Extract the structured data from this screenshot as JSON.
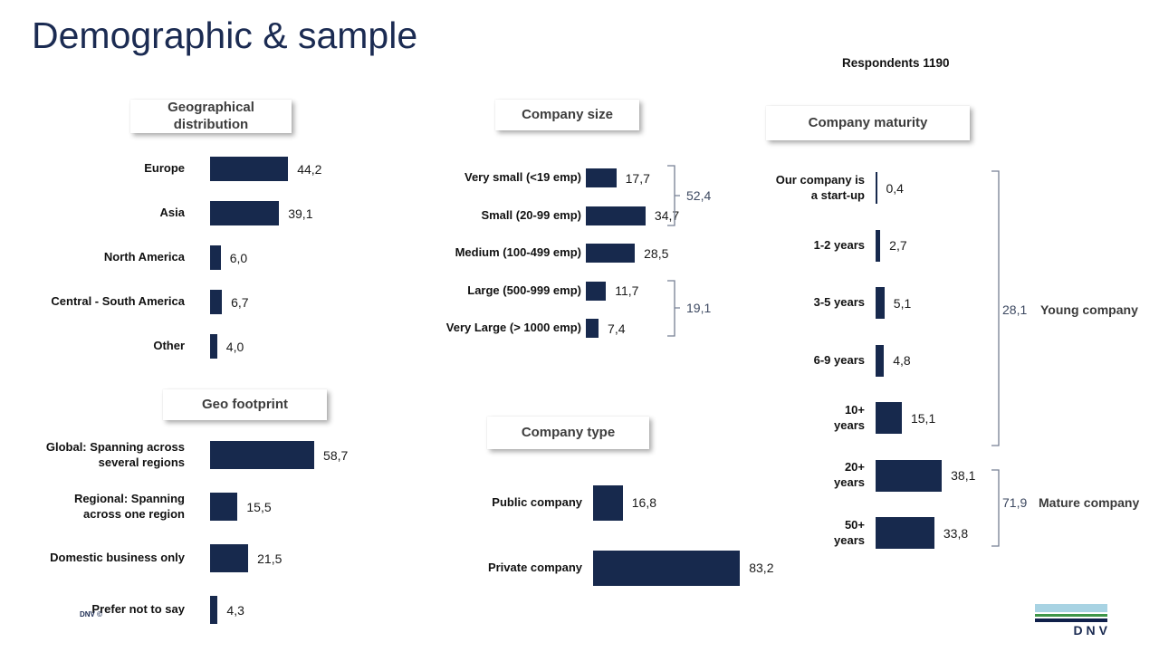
{
  "slide": {
    "title": "Demographic & sample",
    "respondents_label": "Respondents 1190",
    "footer_left": "DNV ©",
    "logo_text": "DNV"
  },
  "colors": {
    "bar": "#17294d",
    "title_text": "#1b2b52",
    "bracket": "#767f93",
    "bracket_value": "#3d4961",
    "logo_light_blue": "#a8d3e3",
    "logo_green": "#3f9649",
    "logo_navy": "#10204a"
  },
  "chart_data": [
    {
      "id": "geo_distribution",
      "type": "bar",
      "orientation": "horizontal",
      "title": "Geographical\ndistribution",
      "categories": [
        "Europe",
        "Asia",
        "North America",
        "Central - South America",
        "Other"
      ],
      "values": [
        44.2,
        39.1,
        6.0,
        6.7,
        4.0
      ],
      "value_format": "comma-decimal"
    },
    {
      "id": "geo_footprint",
      "type": "bar",
      "orientation": "horizontal",
      "title": "Geo footprint",
      "categories": [
        "Global: Spanning across\nseveral regions",
        "Regional: Spanning\nacross one region",
        "Domestic business only",
        "Prefer not to say"
      ],
      "values": [
        58.7,
        15.5,
        21.5,
        4.3
      ],
      "value_format": "comma-decimal"
    },
    {
      "id": "company_size",
      "type": "bar",
      "orientation": "horizontal",
      "title": "Company size",
      "categories": [
        "Very small (<19 emp)",
        "Small (20-99 emp)",
        "Medium (100-499 emp)",
        "Large (500-999 emp)",
        "Very Large (> 1000 emp)"
      ],
      "values": [
        17.7,
        34.7,
        28.5,
        11.7,
        7.4
      ],
      "value_format": "comma-decimal",
      "annotations": [
        {
          "value": 52.4,
          "display": "52,4",
          "covers": [
            "Very small (<19 emp)",
            "Small (20-99 emp)"
          ]
        },
        {
          "value": 19.1,
          "display": "19,1",
          "covers": [
            "Large (500-999 emp)",
            "Very Large (> 1000 emp)"
          ]
        }
      ]
    },
    {
      "id": "company_type",
      "type": "bar",
      "orientation": "horizontal",
      "title": "Company type",
      "categories": [
        "Public company",
        "Private company"
      ],
      "values": [
        16.8,
        83.2
      ],
      "value_format": "comma-decimal"
    },
    {
      "id": "company_maturity",
      "type": "bar",
      "orientation": "horizontal",
      "title": "Company maturity",
      "categories": [
        "Our company is\na start-up",
        "1-2 years",
        "3-5 years",
        "6-9 years",
        "10+\nyears",
        "20+\nyears",
        "50+\nyears"
      ],
      "values": [
        0.4,
        2.7,
        5.1,
        4.8,
        15.1,
        38.1,
        33.8
      ],
      "value_format": "comma-decimal",
      "annotations": [
        {
          "value": 28.1,
          "display": "28,1",
          "label": "Young company",
          "covers": [
            "Our company is a start-up",
            "1-2 years",
            "3-5 years",
            "6-9 years",
            "10+ years"
          ]
        },
        {
          "value": 71.9,
          "display": "71,9",
          "label": "Mature company",
          "covers": [
            "20+ years",
            "50+ years"
          ]
        }
      ]
    }
  ]
}
